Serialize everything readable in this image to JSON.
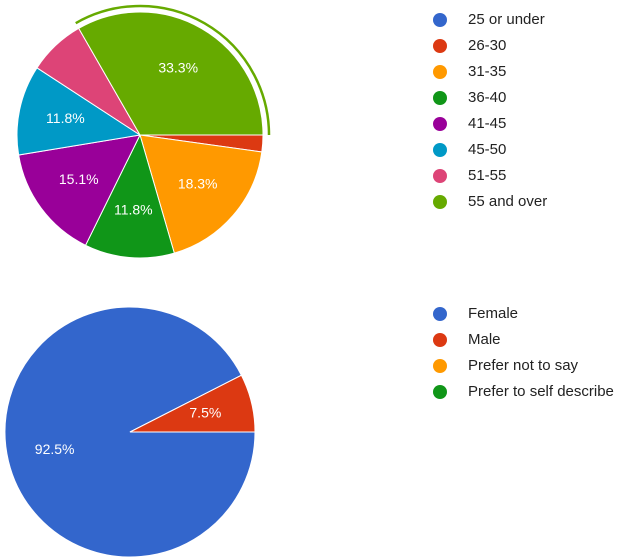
{
  "chart_data": [
    {
      "type": "pie",
      "categories": [
        "25 or under",
        "26-30",
        "31-35",
        "36-40",
        "41-45",
        "45-50",
        "51-55",
        "55 and over"
      ],
      "values": [
        0,
        2.2,
        18.3,
        11.8,
        15.1,
        11.8,
        7.5,
        33.3
      ],
      "value_labels": [
        null,
        null,
        "18.3%",
        "11.8%",
        "15.1%",
        "11.8%",
        null,
        "33.3%"
      ],
      "colors": [
        "#3366cc",
        "#dc3912",
        "#ff9900",
        "#109618",
        "#990099",
        "#0099c6",
        "#dd4477",
        "#66aa00"
      ]
    },
    {
      "type": "pie",
      "categories": [
        "Female",
        "Male",
        "Prefer not to say",
        "Prefer to self describe"
      ],
      "values": [
        92.5,
        7.5,
        0,
        0
      ],
      "value_labels": [
        "92.5%",
        "7.5%",
        null,
        null
      ],
      "colors": [
        "#3366cc",
        "#dc3912",
        "#ff9900",
        "#109618"
      ]
    }
  ]
}
